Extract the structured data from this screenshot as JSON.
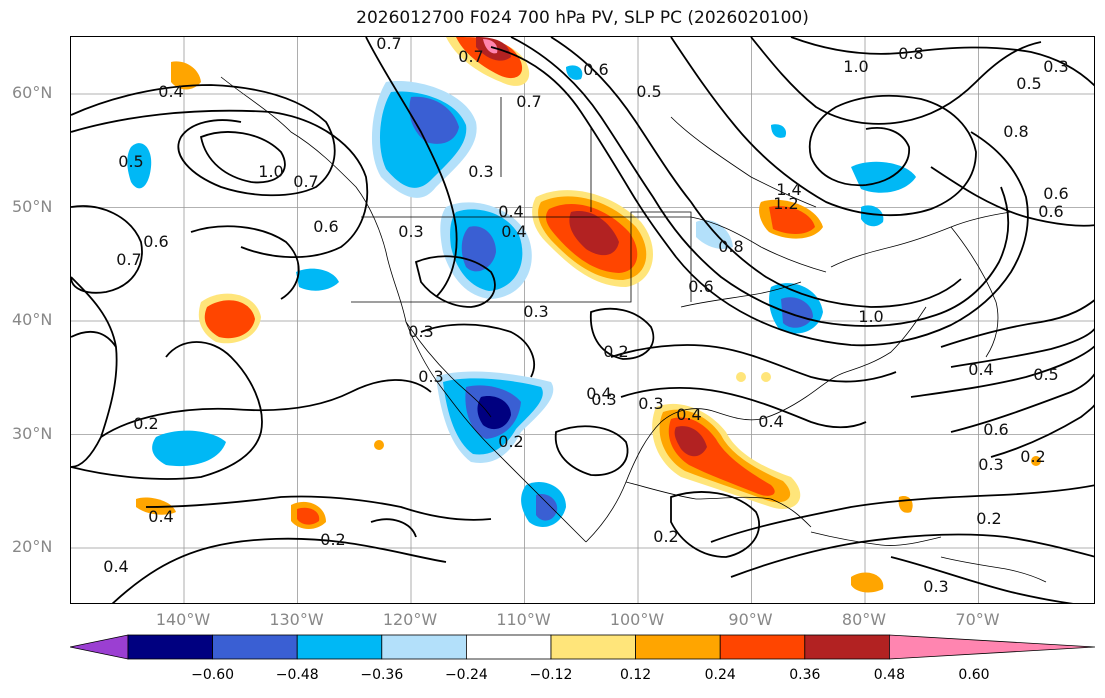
{
  "title": "2026012700 F024 700 hPa PV, SLP PC (2026020100)",
  "lat_labels": [
    {
      "text": "60°N",
      "lat": 60
    },
    {
      "text": "50°N",
      "lat": 50
    },
    {
      "text": "40°N",
      "lat": 40
    },
    {
      "text": "30°N",
      "lat": 30
    },
    {
      "text": "20°N",
      "lat": 20
    }
  ],
  "lon_labels": [
    {
      "text": "140°W",
      "lon": -140
    },
    {
      "text": "130°W",
      "lon": -130
    },
    {
      "text": "120°W",
      "lon": -120
    },
    {
      "text": "110°W",
      "lon": -110
    },
    {
      "text": "100°W",
      "lon": -100
    },
    {
      "text": "90°W",
      "lon": -90
    },
    {
      "text": "80°W",
      "lon": -80
    },
    {
      "text": "70°W",
      "lon": -70
    }
  ],
  "colorbar": {
    "ticks": [
      "−0.60",
      "−0.48",
      "−0.36",
      "−0.24",
      "−0.12",
      "0.12",
      "0.24",
      "0.36",
      "0.48",
      "0.60"
    ],
    "colors": [
      "#9b3fd2",
      "#000080",
      "#3a5fd3",
      "#00b8f5",
      "#b3e0fa",
      "#ffffff",
      "#ffe57a",
      "#ffa500",
      "#ff4500",
      "#b22222",
      "#ff85b0"
    ]
  },
  "contour_labels": [
    "0.7",
    "0.7",
    "0.6",
    "0.5",
    "1.0",
    "0.8",
    "0.3",
    "0.5",
    "0.8",
    "0.6",
    "0.7",
    "0.4",
    "0.5",
    "1.0",
    "0.7",
    "0.6",
    "0.6",
    "0.7",
    "0.3",
    "0.3",
    "0.4",
    "0.4",
    "0.3",
    "1.4",
    "1.2",
    "0.8",
    "0.6",
    "0.6",
    "0.3",
    "0.3",
    "0.2",
    "1.0",
    "0.4",
    "0.3",
    "0.2",
    "0.3",
    "0.4",
    "0.2",
    "0.4",
    "0.4",
    "0.5",
    "0.6",
    "0.3",
    "0.2",
    "0.4",
    "0.2",
    "0.2",
    "0.4",
    "0.2",
    "0.3"
  ],
  "shading_colors": {
    "dark_blue": "#000080",
    "mid_blue": "#3a5fd3",
    "cyan": "#00b8f5",
    "light_blue": "#b3e0fa",
    "yellow": "#ffe57a",
    "orange": "#ffa500",
    "red_orange": "#ff4500",
    "dark_red": "#b22222",
    "pink": "#ff85b0"
  }
}
